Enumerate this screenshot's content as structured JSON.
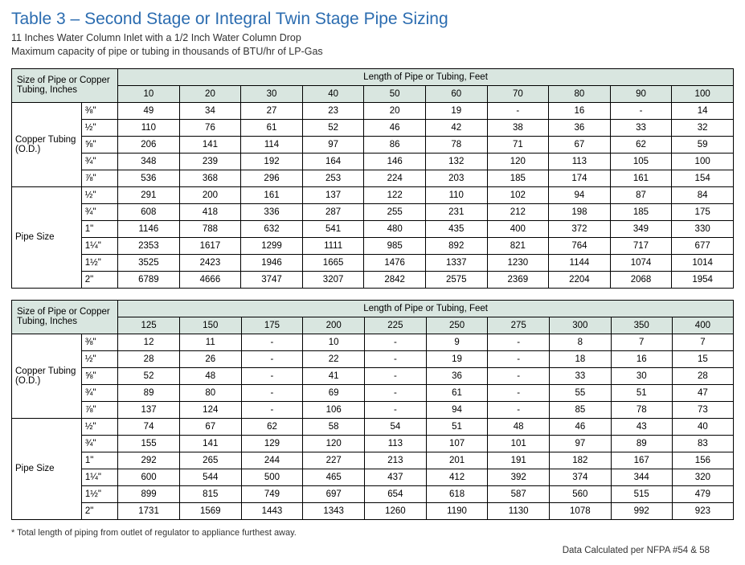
{
  "title": "Table 3 – Second Stage or Integral Twin Stage Pipe Sizing",
  "subtitle_line1": "11 Inches Water Column Inlet with a 1/2 Inch Water Column Drop",
  "subtitle_line2": "Maximum capacity of pipe or tubing in thousands of BTU/hr of LP-Gas",
  "footnote": "* Total length of piping from outlet of regulator to appliance furthest away.",
  "datacalc": "Data Calculated per NFPA #54 & 58",
  "header_size": "Size of Pipe or Copper Tubing, Inches",
  "header_length": "Length of Pipe or Tubing, Feet",
  "group_copper": "Copper Tubing (O.D.)",
  "group_pipe": "Pipe Size",
  "colors": {
    "title": "#2b6cb0",
    "header_bg": "#d9e6e0",
    "border": "#000000",
    "text": "#000000",
    "background": "#ffffff"
  },
  "tables": [
    {
      "lengths": [
        "10",
        "20",
        "30",
        "40",
        "50",
        "60",
        "70",
        "80",
        "90",
        "100"
      ],
      "groups": [
        {
          "label": "Copper Tubing (O.D.)",
          "rows": [
            {
              "size": "⅜\"",
              "v": [
                "49",
                "34",
                "27",
                "23",
                "20",
                "19",
                "-",
                "16",
                "-",
                "14"
              ]
            },
            {
              "size": "½\"",
              "v": [
                "110",
                "76",
                "61",
                "52",
                "46",
                "42",
                "38",
                "36",
                "33",
                "32"
              ]
            },
            {
              "size": "⅝\"",
              "v": [
                "206",
                "141",
                "114",
                "97",
                "86",
                "78",
                "71",
                "67",
                "62",
                "59"
              ]
            },
            {
              "size": "¾\"",
              "v": [
                "348",
                "239",
                "192",
                "164",
                "146",
                "132",
                "120",
                "113",
                "105",
                "100"
              ]
            },
            {
              "size": "⅞\"",
              "v": [
                "536",
                "368",
                "296",
                "253",
                "224",
                "203",
                "185",
                "174",
                "161",
                "154"
              ]
            }
          ]
        },
        {
          "label": "Pipe Size",
          "rows": [
            {
              "size": "½\"",
              "v": [
                "291",
                "200",
                "161",
                "137",
                "122",
                "110",
                "102",
                "94",
                "87",
                "84"
              ]
            },
            {
              "size": "¾\"",
              "v": [
                "608",
                "418",
                "336",
                "287",
                "255",
                "231",
                "212",
                "198",
                "185",
                "175"
              ]
            },
            {
              "size": "1\"",
              "v": [
                "1146",
                "788",
                "632",
                "541",
                "480",
                "435",
                "400",
                "372",
                "349",
                "330"
              ]
            },
            {
              "size": "1¼\"",
              "v": [
                "2353",
                "1617",
                "1299",
                "1111",
                "985",
                "892",
                "821",
                "764",
                "717",
                "677"
              ]
            },
            {
              "size": "1½\"",
              "v": [
                "3525",
                "2423",
                "1946",
                "1665",
                "1476",
                "1337",
                "1230",
                "1144",
                "1074",
                "1014"
              ]
            },
            {
              "size": "2\"",
              "v": [
                "6789",
                "4666",
                "3747",
                "3207",
                "2842",
                "2575",
                "2369",
                "2204",
                "2068",
                "1954"
              ]
            }
          ]
        }
      ]
    },
    {
      "lengths": [
        "125",
        "150",
        "175",
        "200",
        "225",
        "250",
        "275",
        "300",
        "350",
        "400"
      ],
      "groups": [
        {
          "label": "Copper Tubing (O.D.)",
          "rows": [
            {
              "size": "⅜\"",
              "v": [
                "12",
                "11",
                "-",
                "10",
                "-",
                "9",
                "-",
                "8",
                "7",
                "7"
              ]
            },
            {
              "size": "½\"",
              "v": [
                "28",
                "26",
                "-",
                "22",
                "-",
                "19",
                "-",
                "18",
                "16",
                "15"
              ]
            },
            {
              "size": "⅝\"",
              "v": [
                "52",
                "48",
                "-",
                "41",
                "-",
                "36",
                "-",
                "33",
                "30",
                "28"
              ]
            },
            {
              "size": "¾\"",
              "v": [
                "89",
                "80",
                "-",
                "69",
                "-",
                "61",
                "-",
                "55",
                "51",
                "47"
              ]
            },
            {
              "size": "⅞\"",
              "v": [
                "137",
                "124",
                "-",
                "106",
                "-",
                "94",
                "-",
                "85",
                "78",
                "73"
              ]
            }
          ]
        },
        {
          "label": "Pipe Size",
          "rows": [
            {
              "size": "½\"",
              "v": [
                "74",
                "67",
                "62",
                "58",
                "54",
                "51",
                "48",
                "46",
                "43",
                "40"
              ]
            },
            {
              "size": "¾\"",
              "v": [
                "155",
                "141",
                "129",
                "120",
                "113",
                "107",
                "101",
                "97",
                "89",
                "83"
              ]
            },
            {
              "size": "1\"",
              "v": [
                "292",
                "265",
                "244",
                "227",
                "213",
                "201",
                "191",
                "182",
                "167",
                "156"
              ]
            },
            {
              "size": "1¼\"",
              "v": [
                "600",
                "544",
                "500",
                "465",
                "437",
                "412",
                "392",
                "374",
                "344",
                "320"
              ]
            },
            {
              "size": "1½\"",
              "v": [
                "899",
                "815",
                "749",
                "697",
                "654",
                "618",
                "587",
                "560",
                "515",
                "479"
              ]
            },
            {
              "size": "2\"",
              "v": [
                "1731",
                "1569",
                "1443",
                "1343",
                "1260",
                "1190",
                "1130",
                "1078",
                "992",
                "923"
              ]
            }
          ]
        }
      ]
    }
  ]
}
